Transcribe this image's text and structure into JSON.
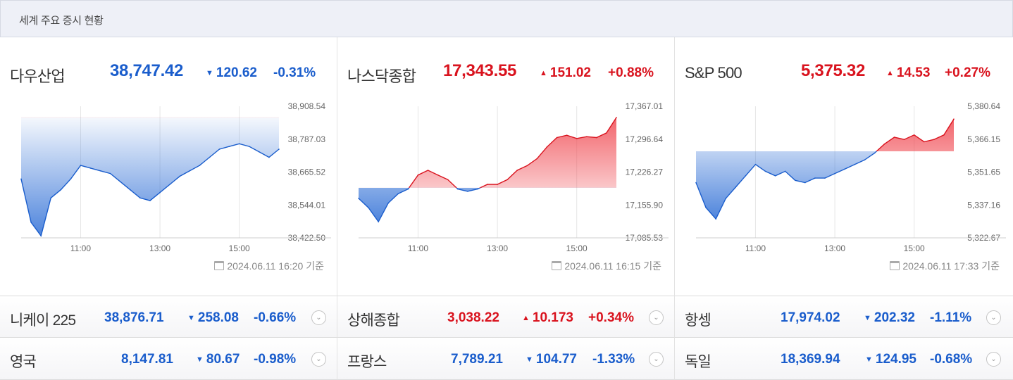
{
  "header": {
    "title": "세계 주요 증시 현황"
  },
  "colors": {
    "down": "#1a5dcc",
    "up": "#d9131e"
  },
  "panels": [
    {
      "name": "다우산업",
      "price": "38,747.42",
      "direction": "down",
      "change": "120.62",
      "pct": "-0.31%",
      "asof": "2024.06.11 16:20 기준",
      "y_ticks": [
        "38,908.54",
        "38,787.03",
        "38,665.52",
        "38,544.01",
        "38,422.50"
      ],
      "x_ticks": [
        "11:00",
        "13:00",
        "15:00"
      ]
    },
    {
      "name": "나스닥종합",
      "price": "17,343.55",
      "direction": "up",
      "change": "151.02",
      "pct": "+0.88%",
      "asof": "2024.06.11 16:15 기준",
      "y_ticks": [
        "17,367.01",
        "17,296.64",
        "17,226.27",
        "17,155.90",
        "17,085.53"
      ],
      "x_ticks": [
        "11:00",
        "13:00",
        "15:00"
      ]
    },
    {
      "name": "S&P 500",
      "price": "5,375.32",
      "direction": "up",
      "change": "14.53",
      "pct": "+0.27%",
      "asof": "2024.06.11 17:33 기준",
      "y_ticks": [
        "5,380.64",
        "5,366.15",
        "5,351.65",
        "5,337.16",
        "5,322.67"
      ],
      "x_ticks": [
        "11:00",
        "13:00",
        "15:00"
      ]
    }
  ],
  "rows": [
    [
      {
        "name": "니케이 225",
        "price": "38,876.71",
        "direction": "down",
        "change": "258.08",
        "pct": "-0.66%"
      },
      {
        "name": "상해종합",
        "price": "3,038.22",
        "direction": "up",
        "change": "10.173",
        "pct": "+0.34%"
      },
      {
        "name": "항셍",
        "price": "17,974.02",
        "direction": "down",
        "change": "202.32",
        "pct": "-1.11%"
      }
    ],
    [
      {
        "name": "영국",
        "price": "8,147.81",
        "direction": "down",
        "change": "80.67",
        "pct": "-0.98%"
      },
      {
        "name": "프랑스",
        "price": "7,789.21",
        "direction": "down",
        "change": "104.77",
        "pct": "-1.33%"
      },
      {
        "name": "독일",
        "price": "18,369.94",
        "direction": "down",
        "change": "124.95",
        "pct": "-0.68%"
      }
    ]
  ],
  "chart_data": [
    {
      "type": "area",
      "title": "다우산업",
      "x": [
        "09:30",
        "09:45",
        "10:00",
        "10:15",
        "10:30",
        "10:45",
        "11:00",
        "11:15",
        "11:30",
        "11:45",
        "12:00",
        "12:15",
        "12:30",
        "12:45",
        "13:00",
        "13:15",
        "13:30",
        "13:45",
        "14:00",
        "14:15",
        "14:30",
        "14:45",
        "15:00",
        "15:15",
        "15:30",
        "15:45",
        "16:00"
      ],
      "values": [
        38640,
        38480,
        38430,
        38570,
        38600,
        38640,
        38690,
        38680,
        38670,
        38660,
        38630,
        38600,
        38570,
        38560,
        38590,
        38620,
        38650,
        38670,
        38690,
        38720,
        38750,
        38760,
        38770,
        38760,
        38740,
        38720,
        38750
      ],
      "baseline": 38868.04,
      "ylim": [
        38422.5,
        38908.54
      ],
      "xlabel": "",
      "ylabel": "",
      "grid": true
    },
    {
      "type": "area",
      "title": "나스닥종합",
      "x": [
        "09:30",
        "09:45",
        "10:00",
        "10:15",
        "10:30",
        "10:45",
        "11:00",
        "11:15",
        "11:30",
        "11:45",
        "12:00",
        "12:15",
        "12:30",
        "12:45",
        "13:00",
        "13:15",
        "13:30",
        "13:45",
        "14:00",
        "14:15",
        "14:30",
        "14:45",
        "15:00",
        "15:15",
        "15:30",
        "15:45",
        "16:00"
      ],
      "values": [
        17170,
        17150,
        17120,
        17160,
        17180,
        17190,
        17220,
        17230,
        17220,
        17210,
        17190,
        17185,
        17190,
        17200,
        17200,
        17210,
        17230,
        17240,
        17255,
        17280,
        17300,
        17305,
        17298,
        17302,
        17300,
        17310,
        17343
      ],
      "baseline": 17192.53,
      "ylim": [
        17085.53,
        17367.01
      ],
      "xlabel": "",
      "ylabel": "",
      "grid": true
    },
    {
      "type": "area",
      "title": "S&P 500",
      "x": [
        "09:30",
        "09:45",
        "10:00",
        "10:15",
        "10:30",
        "10:45",
        "11:00",
        "11:15",
        "11:30",
        "11:45",
        "12:00",
        "12:15",
        "12:30",
        "12:45",
        "13:00",
        "13:15",
        "13:30",
        "13:45",
        "14:00",
        "14:15",
        "14:30",
        "14:45",
        "15:00",
        "15:15",
        "15:30",
        "15:45",
        "16:00"
      ],
      "values": [
        5347,
        5336,
        5331,
        5340,
        5345,
        5350,
        5355,
        5352,
        5350,
        5352,
        5348,
        5347,
        5349,
        5349,
        5351,
        5353,
        5355,
        5357,
        5360,
        5364,
        5367,
        5366,
        5368,
        5365,
        5366,
        5368,
        5375
      ],
      "baseline": 5360.79,
      "ylim": [
        5322.67,
        5380.64
      ],
      "xlabel": "",
      "ylabel": "",
      "grid": true
    }
  ]
}
